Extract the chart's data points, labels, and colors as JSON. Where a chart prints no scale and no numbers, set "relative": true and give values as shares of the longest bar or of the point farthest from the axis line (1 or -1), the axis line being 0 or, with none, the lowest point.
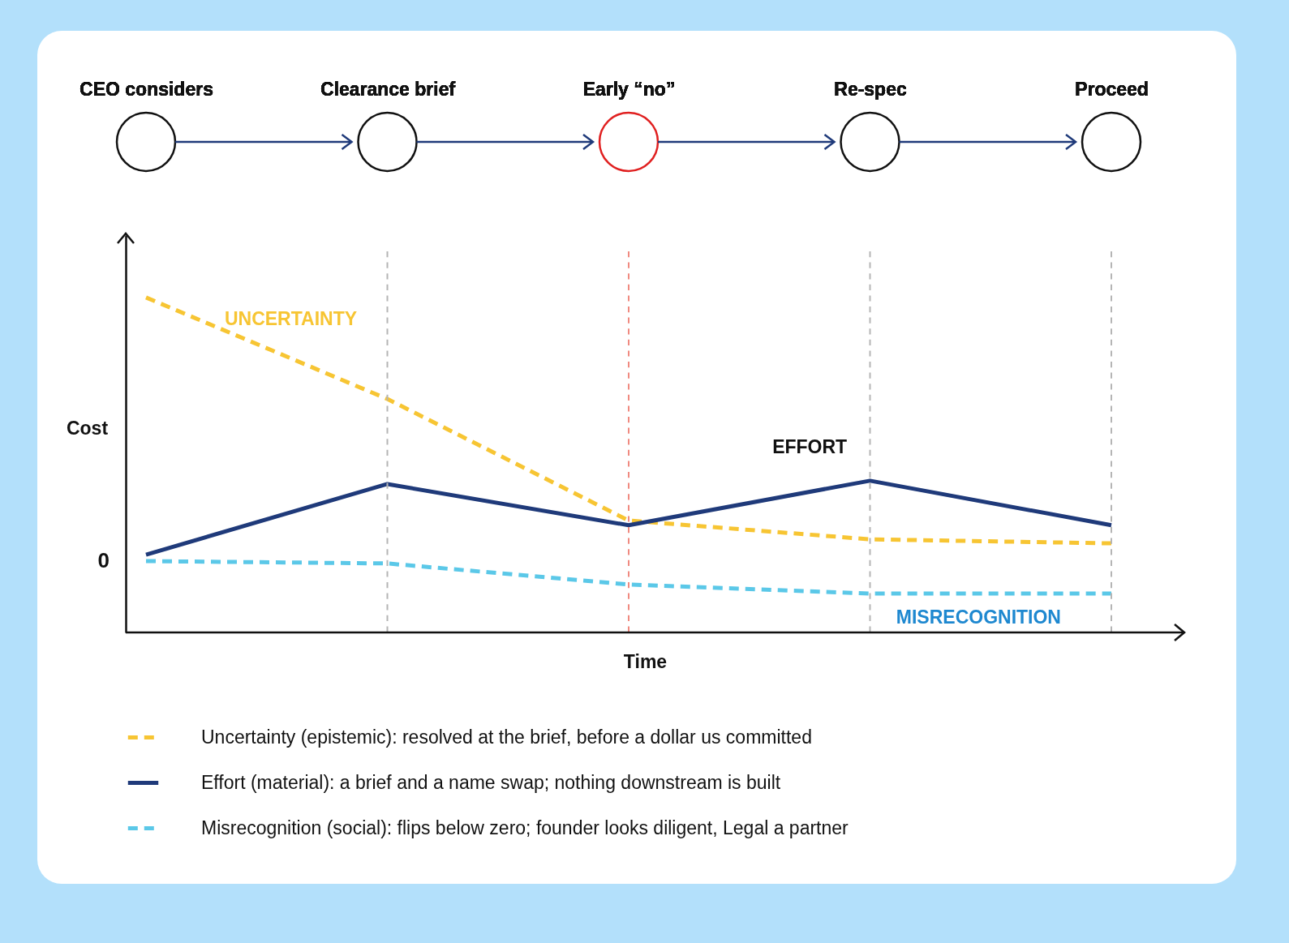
{
  "chart_data": {
    "type": "line",
    "relative": true,
    "xlabel": "Time",
    "ylabel": "Cost",
    "legend": "bottom",
    "categories": [
      "CEO considers",
      "Clearance brief",
      "Early “no”",
      "Re-spec",
      "Proceed"
    ],
    "series": [
      {
        "name": "Uncertainty (epistemic): resolved at the brief, before a dollar us committed",
        "color": "#f7c533",
        "line_style": "dashed",
        "values": [
          1,
          0.697,
          0.334,
          0.278,
          0.266
        ]
      },
      {
        "name": "Effort (material): a brief and a name swap; nothing downstream is built",
        "color": "#1f3a7a",
        "line_style": "solid",
        "values": [
          0.232,
          0.443,
          0.32,
          0.453,
          0.32
        ]
      },
      {
        "name": "Misrecognition (social): flips below zero; founder looks diligent, Legal a partner",
        "color": "#5bc8e8",
        "line_style": "dashed",
        "values": [
          0.213,
          0.206,
          0.143,
          0.116,
          0.116
        ]
      }
    ],
    "ref_lines": [
      {
        "axis": "x",
        "value": "Clearance brief",
        "color": "#b5b5b5",
        "line_style": "dashed"
      },
      {
        "axis": "x",
        "value": "Early “no”",
        "color": "#f08a80",
        "line_style": "dashed"
      },
      {
        "axis": "x",
        "value": "Re-spec",
        "color": "#b5b5b5",
        "line_style": "dashed"
      },
      {
        "axis": "x",
        "value": "Proceed",
        "color": "#b5b5b5",
        "line_style": "dashed"
      }
    ],
    "annotations": [
      "UNCERTAINTY",
      "EFFORT",
      "MISRECOGNITION",
      "0"
    ]
  }
}
